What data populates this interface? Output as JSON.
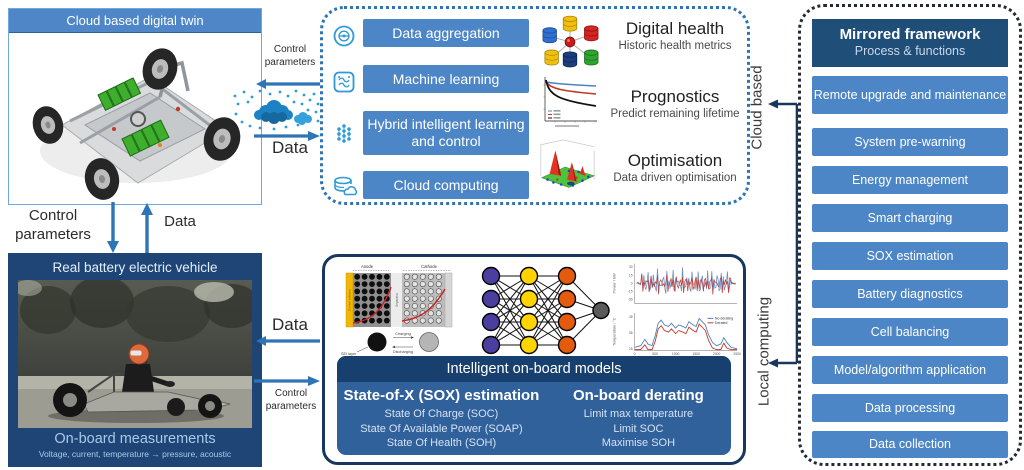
{
  "digital_twin_box": {
    "title": "Cloud based digital twin"
  },
  "twin_link": {
    "control_label": "Control parameters",
    "data_label": "Data"
  },
  "real_vehicle_box": {
    "title": "Real battery electric vehicle",
    "footer_title": "On-board measurements",
    "footer_subtitle": "Voltage, current, temperature → pressure, acoustic"
  },
  "cloud_flow": {
    "control_label": "Control parameters",
    "data_label": "Data"
  },
  "onboard_flow": {
    "data_label": "Data",
    "control_label": "Control parameters"
  },
  "cloud_box": {
    "services": [
      "Data aggregation",
      "Machine learning",
      "Hybrid intelligent learning and control",
      "Cloud computing"
    ],
    "features": [
      {
        "title": "Digital health",
        "subtitle": "Historic health metrics"
      },
      {
        "title": "Prognostics",
        "subtitle": "Predict remaining lifetime"
      },
      {
        "title": "Optimisation",
        "subtitle": "Data driven optimisation"
      }
    ]
  },
  "side_labels": {
    "cloud_based": "Cloud based",
    "local_computing": "Local computing"
  },
  "onboard_box": {
    "band_title": "Intelligent on-board models",
    "columns": [
      {
        "title": "State-of-X (SOX) estimation",
        "items": [
          "State Of Charge (SOC)",
          "State Of Available Power (SOAP)",
          "State Of Health (SOH)"
        ]
      },
      {
        "title": "On-board derating",
        "items": [
          "Limit max temperature",
          "Limit SOC",
          "Maximise SOH"
        ]
      }
    ],
    "battery_diagram": {
      "anode": "Anode",
      "cathode": "Cathode",
      "separator": "Separator",
      "current_collector": "Current collector",
      "charging": "Charging",
      "discharging": "Discharging",
      "sei": "SEI layer"
    },
    "plots": {
      "power_ylabel": "Power / kW",
      "temp_ylabel": "Temperature / °C",
      "xlabel": "Time / s",
      "x_ticks": [
        "0",
        "500",
        "1000",
        "1500",
        "2000",
        "2500"
      ],
      "power_yticks": [
        "30",
        "15",
        "0",
        "-15",
        "-30"
      ],
      "temp_yticks": [
        "45",
        "35",
        "25"
      ],
      "legend": [
        {
          "label": "No derating",
          "color": "#4f81bd"
        },
        {
          "label": "Derated",
          "color": "#c0392b"
        }
      ]
    }
  },
  "mirrored_panel": {
    "title": "Mirrored framework",
    "subtitle": "Process & functions",
    "functions": [
      "Remote upgrade and maintenance",
      "System pre-warning",
      "Energy management",
      "Smart charging",
      "SOX estimation",
      "Battery diagnostics",
      "Cell balancing",
      "Model/algorithm application",
      "Data processing",
      "Data collection"
    ]
  },
  "colors": {
    "button_blue": "#4d86c7",
    "navy": "#1f4e79",
    "dark_navy": "#17375e",
    "arrow_blue": "#2e75b6",
    "icon_blue": "#2e9bd5"
  }
}
